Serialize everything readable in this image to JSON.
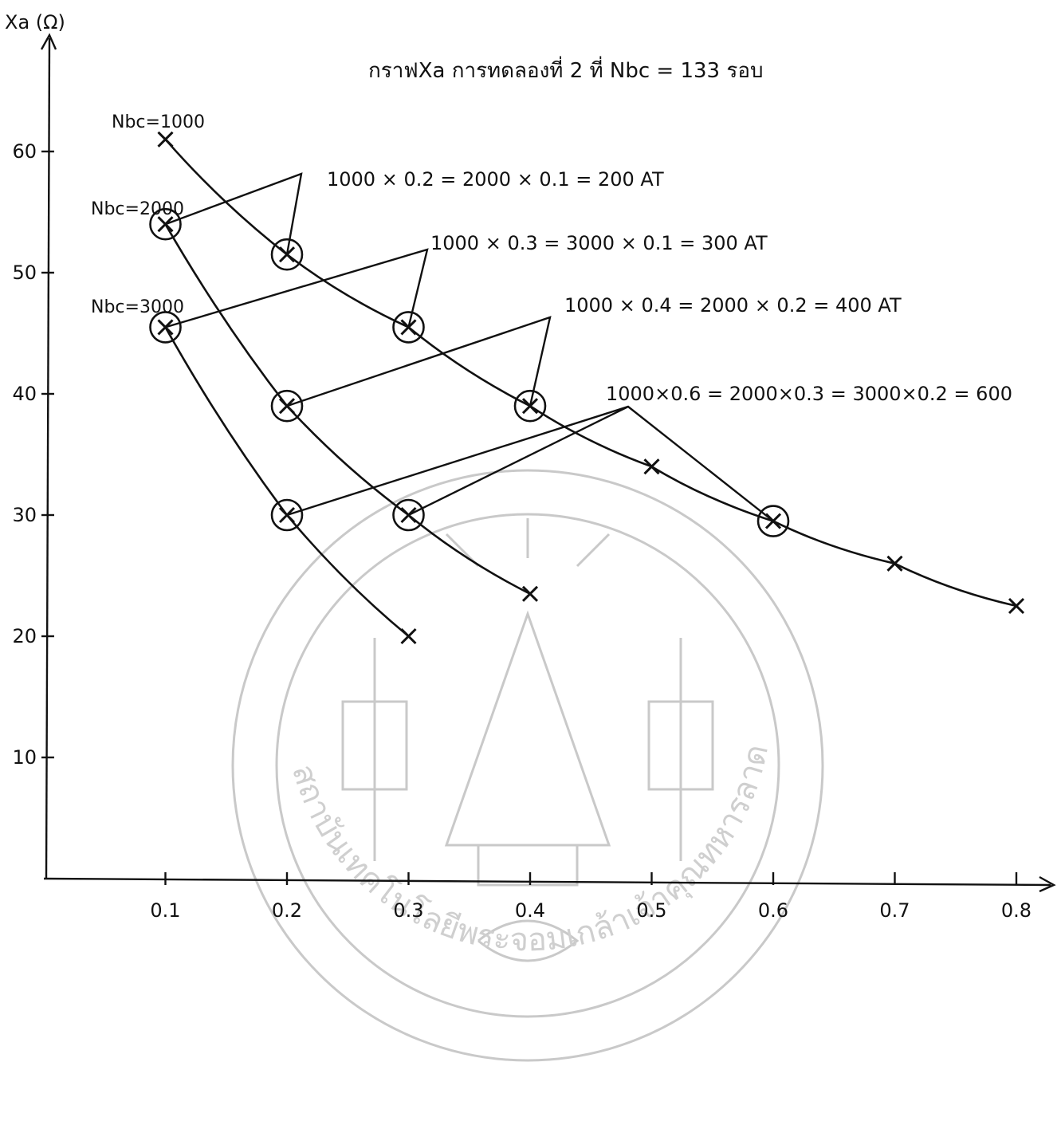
{
  "chart_data": {
    "type": "line",
    "title": "กราฟXa การทดลองที่ 2 ที่ Nbc = 133 รอบ",
    "ylabel": "Xa (Ω)",
    "xlabel": "",
    "xlim": [
      0,
      0.8
    ],
    "ylim": [
      0,
      70
    ],
    "x_ticks": [
      "0.1",
      "0.2",
      "0.3",
      "0.4",
      "0.5",
      "0.6",
      "0.7",
      "0.8"
    ],
    "y_ticks": [
      "10",
      "20",
      "30",
      "40",
      "50",
      "60"
    ],
    "grid": false,
    "series": [
      {
        "name": "Nbc=1000",
        "x": [
          0.1,
          0.2,
          0.3,
          0.4,
          0.5,
          0.6,
          0.7,
          0.8
        ],
        "y": [
          61,
          51.5,
          45.5,
          39,
          34,
          29.5,
          26,
          22.5
        ],
        "circled": [
          0.2,
          0.3,
          0.4,
          0.6
        ]
      },
      {
        "name": "Nbc=2000",
        "x": [
          0.1,
          0.2,
          0.3,
          0.4
        ],
        "y": [
          54,
          39,
          30,
          23.5
        ],
        "circled": [
          0.1,
          0.2,
          0.3
        ]
      },
      {
        "name": "Nbc=3000",
        "x": [
          0.1,
          0.2,
          0.3
        ],
        "y": [
          45.5,
          30,
          20
        ],
        "circled": [
          0.1,
          0.2
        ]
      }
    ],
    "annotations": [
      {
        "text": "1000 × 0.2 = 2000 × 0.1 = 200 AT"
      },
      {
        "text": "1000 × 0.3 = 3000 × 0.1 = 300 AT"
      },
      {
        "text": "1000 × 0.4 = 2000 × 0.2 = 400 AT"
      },
      {
        "text": "1000×0.6 = 2000×0.3 = 3000×0.2 = 600"
      }
    ]
  },
  "watermark": {
    "text": "สถาบันเทคโนโลยีพระจอมเกล้าเจ้าคุณทหารลาดกระบัง",
    "colour": "#c9c9c9"
  }
}
